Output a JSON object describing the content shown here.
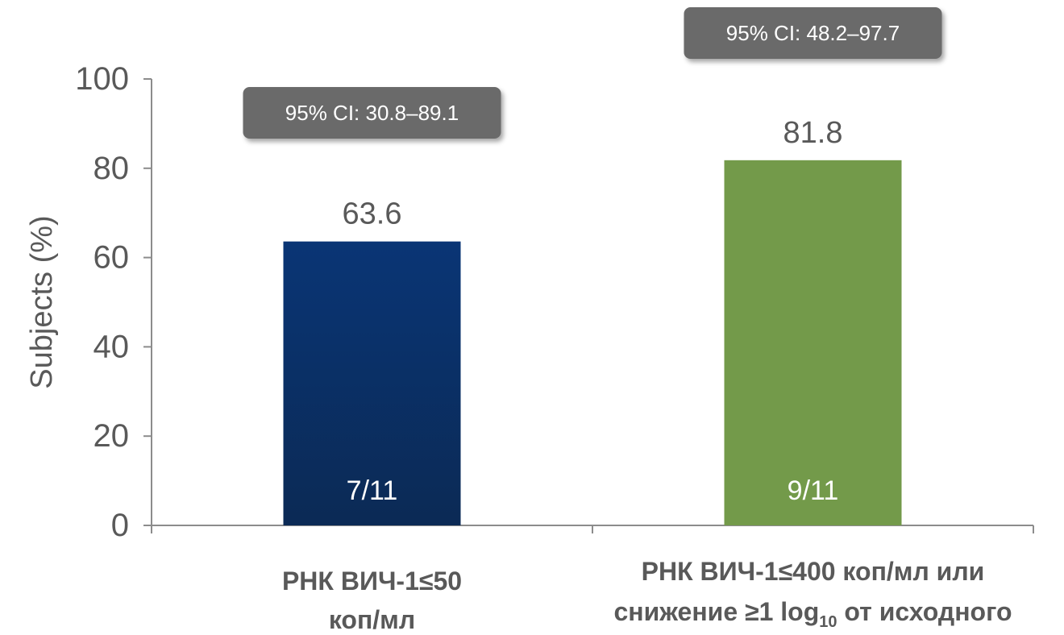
{
  "chart_data": {
    "type": "bar",
    "ylabel": "Subjects (%)",
    "ylim": [
      0,
      100
    ],
    "yticks": [
      0,
      20,
      40,
      60,
      80,
      100
    ],
    "grid": false,
    "categories": [
      {
        "lines": [
          "РНК ВИЧ-1≤50",
          "коп/мл"
        ]
      },
      {
        "line1": "РНК ВИЧ-1≤400 коп/мл  или",
        "line2_before": "снижение ≥1 log",
        "line2_sub": "10",
        "line2_after": " от исходного"
      }
    ],
    "values": [
      63.6,
      81.8
    ],
    "value_labels": [
      "63.6",
      "81.8"
    ],
    "count_labels": [
      "7/11",
      "9/11"
    ],
    "ci_labels": [
      "95% CI: 30.8–89.1",
      "95% CI: 48.2–97.7"
    ],
    "bar_colors": [
      "#082e63",
      "#739a4a"
    ],
    "ci_box_color": "#6b6b6b",
    "axis_color": "#8c8c8c"
  }
}
